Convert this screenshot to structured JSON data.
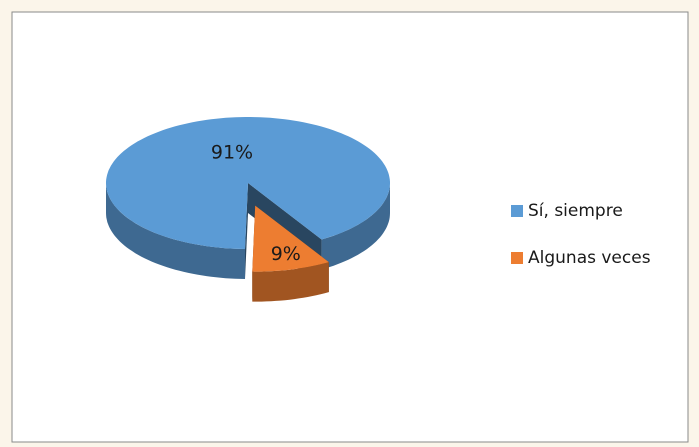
{
  "chart_data": {
    "type": "pie",
    "categories": [
      "Sí, siempre",
      "Algunas veces"
    ],
    "values": [
      91,
      9
    ],
    "value_labels": [
      "91%",
      "9%"
    ],
    "colors": [
      "#5b9bd5",
      "#ed7d31"
    ]
  }
}
